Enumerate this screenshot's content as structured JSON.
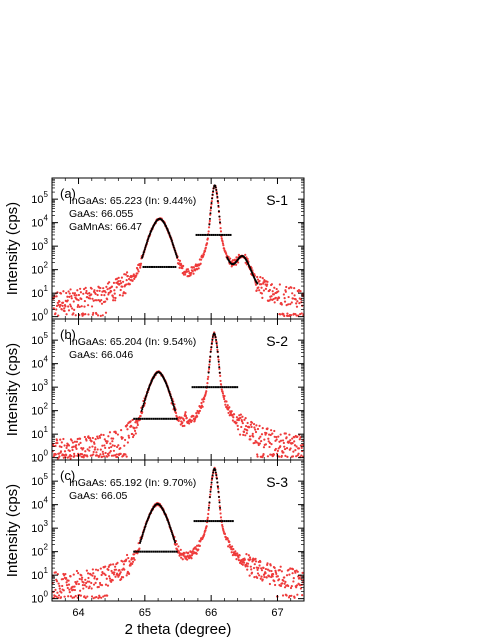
{
  "chart_data": [
    {
      "type": "scatter",
      "panel_letter": "(a)",
      "sample_label": "S-1",
      "annotations": [
        "InGaAs: 65.223 (In: 9.44%)",
        "GaAs: 66.055",
        "GaMnAs: 66.47"
      ],
      "ylabel": "Intensity (cps)",
      "xlim": [
        63.6,
        67.4
      ],
      "ylim_log10": [
        -0.1,
        5.9
      ],
      "ytick_exponents": [
        0,
        1,
        2,
        3,
        4,
        5
      ],
      "y_scale": "log",
      "peaks": [
        {
          "center": 65.223,
          "height": 15000,
          "width": 0.22,
          "fwhm_marker_y": 130,
          "fwhm_marker_x": [
            64.98,
            65.48
          ]
        },
        {
          "center": 66.055,
          "height": 400000,
          "width": 0.068,
          "fwhm_marker_y": 3000,
          "fwhm_marker_x": [
            65.78,
            66.3
          ]
        },
        {
          "center": 66.47,
          "height": 350,
          "width": 0.19
        }
      ],
      "background": 2.5,
      "grid": false,
      "series_colors": {
        "data": "#ee3a3a",
        "fit": "#000000"
      }
    },
    {
      "type": "scatter",
      "panel_letter": "(b)",
      "sample_label": "S-2",
      "annotations": [
        "InGaAs: 65.204 (In: 9.54%)",
        "GaAs: 66.046"
      ],
      "ylabel": "Intensity (cps)",
      "xlim": [
        63.6,
        67.4
      ],
      "ylim_log10": [
        -0.1,
        5.9
      ],
      "ytick_exponents": [
        0,
        1,
        2,
        3,
        4,
        5
      ],
      "y_scale": "log",
      "peaks": [
        {
          "center": 65.204,
          "height": 4500,
          "width": 0.21,
          "fwhm_marker_y": 45,
          "fwhm_marker_x": [
            64.84,
            65.48
          ]
        },
        {
          "center": 66.046,
          "height": 200000,
          "width": 0.07,
          "fwhm_marker_y": 1000,
          "fwhm_marker_x": [
            65.72,
            66.4
          ]
        }
      ],
      "background": 1.5,
      "grid": false,
      "series_colors": {
        "data": "#ee3a3a",
        "fit": "#000000"
      }
    },
    {
      "type": "scatter",
      "panel_letter": "(c)",
      "sample_label": "S-3",
      "annotations": [
        "InGaAs: 65.192 (In: 9.70%)",
        "GaAs: 66.05"
      ],
      "ylabel": "Intensity (cps)",
      "xlabel": "2 theta (degree)",
      "xlim": [
        63.6,
        67.4
      ],
      "ylim_log10": [
        -0.1,
        5.9
      ],
      "xticks": [
        64,
        65,
        66,
        67
      ],
      "ytick_exponents": [
        0,
        1,
        2,
        3,
        4,
        5
      ],
      "y_scale": "log",
      "peaks": [
        {
          "center": 65.192,
          "height": 11000,
          "width": 0.22,
          "fwhm_marker_y": 100,
          "fwhm_marker_x": [
            64.84,
            65.5
          ]
        },
        {
          "center": 66.05,
          "height": 350000,
          "width": 0.07,
          "fwhm_marker_y": 2000,
          "fwhm_marker_x": [
            65.75,
            66.35
          ]
        }
      ],
      "background": 3,
      "grid": false,
      "series_colors": {
        "data": "#ee3a3a",
        "fit": "#000000"
      }
    }
  ]
}
